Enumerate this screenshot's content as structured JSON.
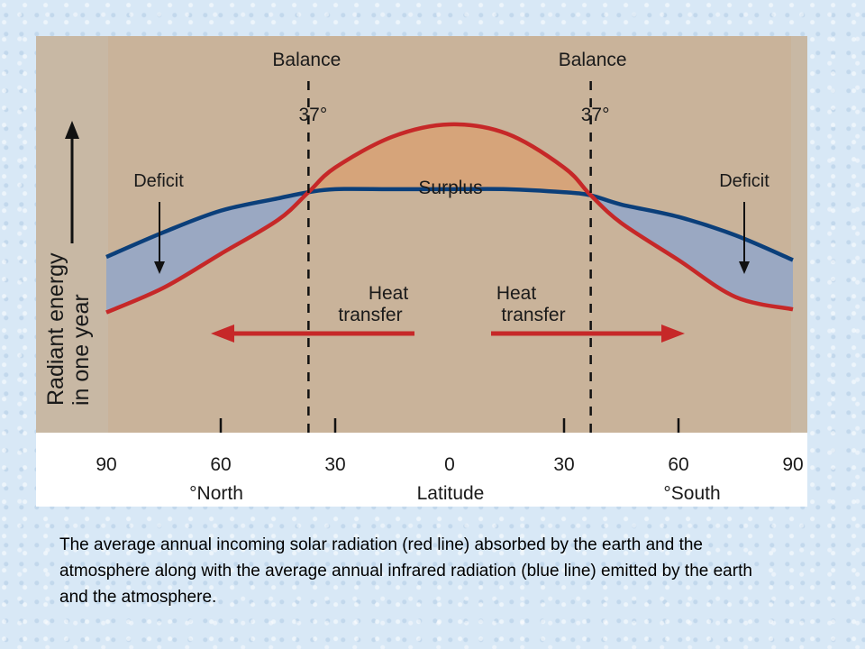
{
  "chart_data": {
    "type": "line",
    "title": "",
    "ylabel": "Radiant energy in one year",
    "ylabel_lines": [
      "Radiant energy",
      "in one year"
    ],
    "xlabel": "Latitude",
    "xlabel_left": "°North",
    "xlabel_right": "°South",
    "x_tick_labels": [
      "90",
      "60",
      "30",
      "0",
      "30",
      "60",
      "90"
    ],
    "x": [
      -90,
      -75,
      -60,
      -45,
      -37,
      -30,
      -15,
      0,
      15,
      30,
      37,
      45,
      60,
      75,
      90
    ],
    "xlim": [
      -90,
      90
    ],
    "ylim": [
      0,
      100
    ],
    "series": [
      {
        "name": "red line",
        "color": "#c62828",
        "values": [
          39,
          47,
          58,
          69,
          78,
          86,
          96,
          100,
          97,
          86,
          77,
          68,
          56,
          44,
          40
        ]
      },
      {
        "name": "blue line",
        "color": "#0b3f7a",
        "values": [
          57,
          65,
          72,
          76,
          78,
          79,
          79,
          79,
          79,
          78,
          77,
          74,
          70,
          64,
          56
        ]
      }
    ],
    "balance_lines": [
      {
        "x": -37,
        "label": "Balance",
        "degree_label": "37°"
      },
      {
        "x": 37,
        "label": "Balance",
        "degree_label": "37°"
      }
    ],
    "annotations": {
      "deficit_left": "Deficit",
      "deficit_right": "Deficit",
      "surplus": "Surplus",
      "heat_transfer_left": [
        "Heat",
        "transfer"
      ],
      "heat_transfer_right": [
        "Heat",
        "transfer"
      ]
    },
    "colors": {
      "background": "#c8b8a4",
      "surplus_fill": "#d6a47a",
      "deficit_fill": "#9aa8c2",
      "heat_arrow": "#c62828",
      "blue_line": "#0b3f7a",
      "red_line": "#c62828"
    }
  },
  "caption": "The average annual incoming solar radiation (red line) absorbed by the earth and the atmosphere along with the average annual infrared radiation (blue line) emitted by the earth and the atmosphere."
}
